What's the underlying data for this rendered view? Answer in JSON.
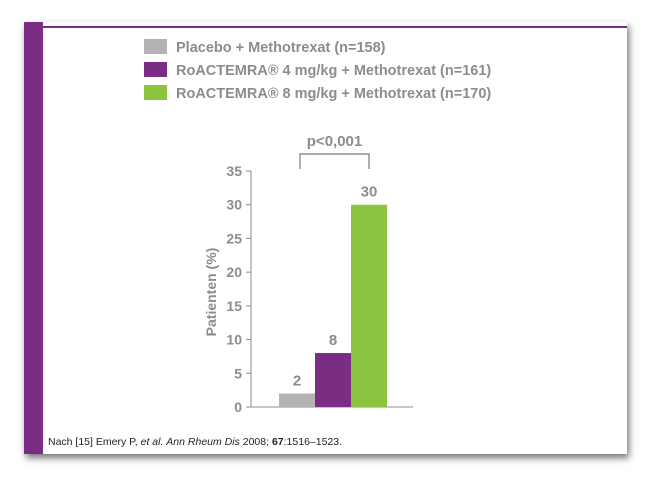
{
  "colors": {
    "accent": "#7b2d83",
    "placebo": "#b3b3b3",
    "dose4": "#7b2d83",
    "dose8": "#8cc43f",
    "text": "#8c8c8c"
  },
  "chart_data": {
    "type": "bar",
    "title": "",
    "xlabel": "",
    "ylabel": "Patienten (%)",
    "ylim": [
      0,
      35
    ],
    "yticks": [
      0,
      5,
      10,
      15,
      20,
      25,
      30,
      35
    ],
    "grid": false,
    "legend_position": "top",
    "series": [
      {
        "name": "Placebo + Methotrexat (n=158)",
        "value": 2,
        "value_label": "2",
        "color": "#b3b3b3"
      },
      {
        "name": "RoACTEMRA® 4 mg/kg + Methotrexat (n=161)",
        "value": 8,
        "value_label": "8",
        "color": "#7b2d83"
      },
      {
        "name": "RoACTEMRA® 8 mg/kg + Methotrexat (n=170)",
        "value": 30,
        "value_label": "30",
        "color": "#8cc43f"
      }
    ],
    "annotation": "p<0,001"
  },
  "citation": {
    "prefix": "Nach [15] Emery P, ",
    "etal": "et al.",
    "space": " ",
    "journal": "Ann Rheum Dis",
    "year": " 2008; ",
    "volume": "67",
    "pages": ":1516–1523."
  }
}
